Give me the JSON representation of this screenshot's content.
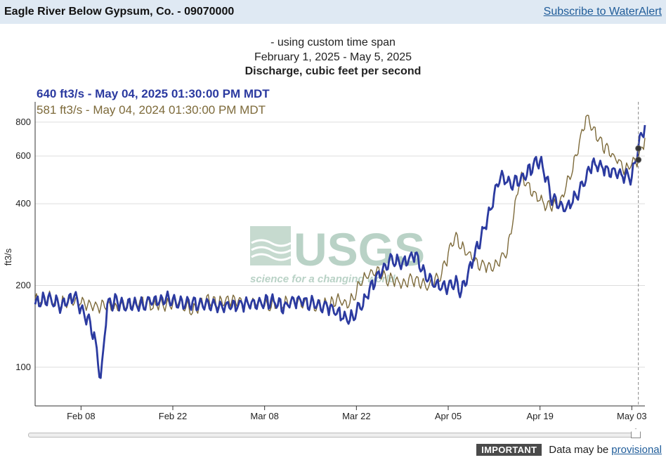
{
  "header": {
    "station_title": "Eagle River Below Gypsum, Co. - 09070000",
    "subscribe_link": "Subscribe to WaterAlert"
  },
  "chart_header": {
    "span_label": "- using custom time span",
    "range_label": "February 1, 2025 - May 5, 2025",
    "parameter_label": "Discharge, cubic feet per second"
  },
  "legend": {
    "current": "640 ft3/s - May 04, 2025 01:30:00 PM MDT",
    "prior": "581 ft3/s - May 04, 2024 01:30:00 PM MDT"
  },
  "watermark": {
    "logo_text": "USGS",
    "tagline": "science for a changing world"
  },
  "footer": {
    "badge": "IMPORTANT",
    "text": "Data may be",
    "link": "provisional"
  },
  "colors": {
    "current_series": "#2b3aa0",
    "prior_series": "#7d6a3a",
    "grid": "#dddddd",
    "cursor_line": "#888888"
  },
  "chart_data": {
    "type": "line",
    "title": "Discharge, cubic feet per second",
    "ylabel": "ft3/s",
    "xlabel": "",
    "y_scale": "log",
    "ylim": [
      72,
      950
    ],
    "xlim": [
      "2025-02-01",
      "2025-05-05"
    ],
    "y_ticks": [
      100,
      200,
      400,
      600,
      800
    ],
    "x_ticks": [
      "Feb 08",
      "Feb 22",
      "Mar 08",
      "Mar 22",
      "Apr 05",
      "Apr 19",
      "May 03"
    ],
    "x_tick_dates": [
      "2025-02-08",
      "2025-02-22",
      "2025-03-08",
      "2025-03-22",
      "2025-04-05",
      "2025-04-19",
      "2025-05-03"
    ],
    "grid": true,
    "cursor_date": "2025-05-04",
    "series": [
      {
        "name": "640 ft3/s - May 04, 2025 01:30:00 PM MDT",
        "x": [
          "2025-02-01",
          "2025-02-03",
          "2025-02-05",
          "2025-02-07",
          "2025-02-09",
          "2025-02-10",
          "2025-02-11",
          "2025-02-12",
          "2025-02-13",
          "2025-02-15",
          "2025-02-17",
          "2025-02-19",
          "2025-02-21",
          "2025-02-23",
          "2025-02-25",
          "2025-02-27",
          "2025-03-01",
          "2025-03-03",
          "2025-03-05",
          "2025-03-07",
          "2025-03-09",
          "2025-03-11",
          "2025-03-13",
          "2025-03-15",
          "2025-03-17",
          "2025-03-19",
          "2025-03-21",
          "2025-03-23",
          "2025-03-25",
          "2025-03-27",
          "2025-03-29",
          "2025-03-31",
          "2025-04-02",
          "2025-04-04",
          "2025-04-06",
          "2025-04-07",
          "2025-04-09",
          "2025-04-11",
          "2025-04-13",
          "2025-04-15",
          "2025-04-17",
          "2025-04-19",
          "2025-04-21",
          "2025-04-23",
          "2025-04-25",
          "2025-04-27",
          "2025-04-29",
          "2025-05-01",
          "2025-05-03",
          "2025-05-04",
          "2025-05-05"
        ],
        "values": [
          172,
          178,
          168,
          184,
          150,
          132,
          90,
          168,
          174,
          170,
          168,
          176,
          178,
          172,
          170,
          174,
          170,
          168,
          172,
          170,
          174,
          168,
          178,
          172,
          170,
          160,
          150,
          172,
          212,
          248,
          242,
          260,
          208,
          196,
          205,
          190,
          260,
          350,
          510,
          470,
          520,
          585,
          410,
          385,
          440,
          560,
          540,
          510,
          500,
          640,
          780
        ]
      },
      {
        "name": "581 ft3/s - May 04, 2024 01:30:00 PM MDT",
        "x": [
          "2025-02-01",
          "2025-02-03",
          "2025-02-05",
          "2025-02-07",
          "2025-02-09",
          "2025-02-11",
          "2025-02-13",
          "2025-02-15",
          "2025-02-17",
          "2025-02-19",
          "2025-02-21",
          "2025-02-23",
          "2025-02-25",
          "2025-02-27",
          "2025-03-01",
          "2025-03-03",
          "2025-03-05",
          "2025-03-07",
          "2025-03-09",
          "2025-03-11",
          "2025-03-13",
          "2025-03-15",
          "2025-03-17",
          "2025-03-19",
          "2025-03-21",
          "2025-03-23",
          "2025-03-25",
          "2025-03-27",
          "2025-03-29",
          "2025-03-31",
          "2025-04-02",
          "2025-04-04",
          "2025-04-06",
          "2025-04-08",
          "2025-04-10",
          "2025-04-12",
          "2025-04-14",
          "2025-04-16",
          "2025-04-18",
          "2025-04-20",
          "2025-04-22",
          "2025-04-24",
          "2025-04-26",
          "2025-04-28",
          "2025-04-30",
          "2025-05-02",
          "2025-05-04",
          "2025-05-05"
        ],
        "values": [
          175,
          180,
          172,
          176,
          170,
          168,
          166,
          170,
          174,
          168,
          172,
          175,
          160,
          178,
          172,
          176,
          170,
          174,
          168,
          172,
          176,
          170,
          168,
          176,
          172,
          212,
          228,
          210,
          205,
          212,
          198,
          222,
          300,
          262,
          238,
          238,
          265,
          510,
          440,
          390,
          400,
          540,
          840,
          690,
          600,
          540,
          581,
          700
        ]
      }
    ]
  }
}
